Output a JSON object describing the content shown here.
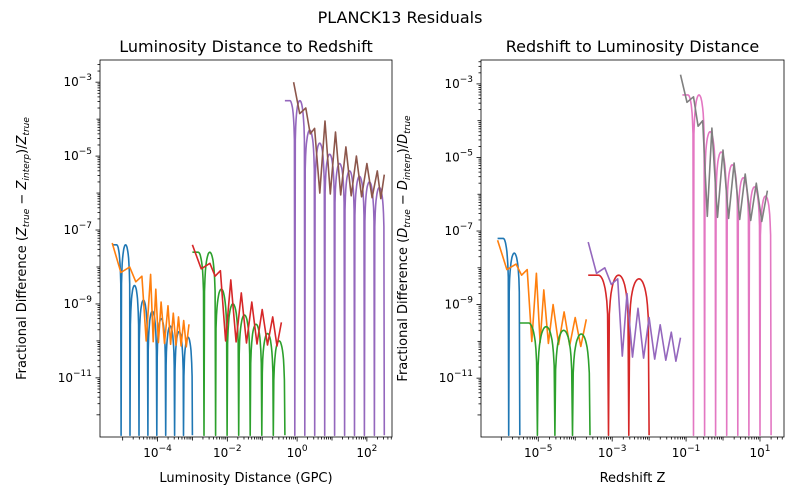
{
  "figure": {
    "suptitle": "PLANCK13 Residuals"
  },
  "palette": [
    "#1f77b4",
    "#ff7f0e",
    "#2ca02c",
    "#d62728",
    "#9467bd",
    "#8c564b",
    "#e377c2",
    "#7f7f7f"
  ],
  "chart_data": [
    {
      "type": "line",
      "title": "Luminosity Distance to Redshift",
      "xlabel": "Luminosity Distance (GPC)",
      "ylabel": "Fractional Difference (Z_true − Z_interp)/Z_true",
      "xscale": "log",
      "yscale": "log",
      "xlim_log10": [
        -5.65,
        2.72
      ],
      "ylim_log10": [
        -12.6,
        -2.4
      ],
      "xticks": [
        {
          "exp": -4,
          "label": "10^-4"
        },
        {
          "exp": -2,
          "label": "10^-2"
        },
        {
          "exp": 0,
          "label": "10^0"
        },
        {
          "exp": 2,
          "label": "10^2"
        }
      ],
      "yticks": [
        {
          "exp": -3,
          "label": "10^-3"
        },
        {
          "exp": -5,
          "label": "10^-5"
        },
        {
          "exp": -7,
          "label": "10^-7"
        },
        {
          "exp": -9,
          "label": "10^-9"
        },
        {
          "exp": -11,
          "label": "10^-11"
        }
      ],
      "series": [
        {
          "color_index": 0,
          "kind": "humps",
          "x_log10": [
            -5.3,
            -3.0
          ],
          "peaks_log10": [
            -7.4,
            -7.4,
            -8.5,
            -8.9,
            -9.2,
            -9.4,
            -9.6,
            -9.75,
            -9.9
          ],
          "floor_log10": -12.55
        },
        {
          "color_index": 1,
          "kind": "envelope",
          "x_log10": [
            -5.3,
            -3.05
          ],
          "points_log10": [
            [
              -5.3,
              -7.35
            ],
            [
              -4.8,
              -8.0
            ],
            [
              -4.45,
              -8.25
            ],
            [
              -4.2,
              -8.2
            ],
            [
              -4.05,
              -8.6
            ],
            [
              -3.9,
              -8.95
            ],
            [
              -3.7,
              -9.05
            ],
            [
              -3.55,
              -9.25
            ],
            [
              -3.4,
              -9.35
            ],
            [
              -3.25,
              -9.45
            ],
            [
              -3.1,
              -9.55
            ]
          ],
          "dips_log10": -10.0
        },
        {
          "color_index": 2,
          "kind": "humps",
          "x_log10": [
            -3.0,
            -0.35
          ],
          "peaks_log10": [
            -7.6,
            -7.6,
            -8.6,
            -9.0,
            -9.3,
            -9.55,
            -9.8,
            -10.0
          ],
          "floor_log10": -12.55
        },
        {
          "color_index": 3,
          "kind": "envelope",
          "x_log10": [
            -3.0,
            -0.4
          ],
          "points_log10": [
            [
              -3.0,
              -7.4
            ],
            [
              -2.5,
              -7.9
            ],
            [
              -2.2,
              -8.1
            ],
            [
              -1.9,
              -8.35
            ],
            [
              -1.6,
              -8.7
            ],
            [
              -1.3,
              -8.95
            ],
            [
              -1.0,
              -9.15
            ],
            [
              -0.7,
              -9.35
            ],
            [
              -0.45,
              -9.5
            ]
          ],
          "dips_log10": -10.0
        },
        {
          "color_index": 4,
          "kind": "humps",
          "x_log10": [
            -0.35,
            2.5
          ],
          "peaks_log10": [
            -3.5,
            -3.5,
            -4.3,
            -4.65,
            -4.95,
            -5.2,
            -5.4,
            -5.55,
            -5.7,
            -5.85
          ],
          "floor_log10": -12.55
        },
        {
          "color_index": 5,
          "kind": "envelope",
          "x_log10": [
            -0.1,
            2.55
          ],
          "points_log10": [
            [
              -0.1,
              -3.0
            ],
            [
              0.25,
              -3.7
            ],
            [
              0.5,
              -4.25
            ],
            [
              0.8,
              -4.05
            ],
            [
              1.1,
              -4.35
            ],
            [
              1.4,
              -4.75
            ],
            [
              1.7,
              -5.0
            ],
            [
              2.0,
              -5.2
            ],
            [
              2.3,
              -5.4
            ],
            [
              2.5,
              -5.5
            ]
          ],
          "dips_log10": -6.0
        }
      ]
    },
    {
      "type": "line",
      "title": "Redshift to Luminosity Distance",
      "xlabel": "Redshift Z",
      "ylabel": "Fractional Difference (D_true − D_interp)/D_true",
      "xscale": "log",
      "yscale": "log",
      "xlim_log10": [
        -6.55,
        1.65
      ],
      "ylim_log10": [
        -12.6,
        -2.35
      ],
      "xticks": [
        {
          "exp": -5,
          "label": "10^-5"
        },
        {
          "exp": -3,
          "label": "10^-3"
        },
        {
          "exp": -1,
          "label": "10^-1"
        },
        {
          "exp": 1,
          "label": "10^1"
        }
      ],
      "yticks": [
        {
          "exp": -3,
          "label": "10^-3"
        },
        {
          "exp": -5,
          "label": "10^-5"
        },
        {
          "exp": -7,
          "label": "10^-7"
        },
        {
          "exp": -9,
          "label": "10^-9"
        },
        {
          "exp": -11,
          "label": "10^-11"
        }
      ],
      "series": [
        {
          "color_index": 0,
          "kind": "humps",
          "x_log10": [
            -6.1,
            -5.5
          ],
          "peaks_log10": [
            -7.2,
            -7.6
          ],
          "floor_log10": -12.55
        },
        {
          "color_index": 1,
          "kind": "envelope",
          "x_log10": [
            -6.1,
            -3.6
          ],
          "points_log10": [
            [
              -6.1,
              -7.25
            ],
            [
              -5.6,
              -7.9
            ],
            [
              -5.3,
              -8.05
            ],
            [
              -5.05,
              -8.15
            ],
            [
              -4.85,
              -8.6
            ],
            [
              -4.6,
              -9.0
            ],
            [
              -4.3,
              -9.2
            ],
            [
              -4.0,
              -9.35
            ],
            [
              -3.7,
              -9.4
            ]
          ],
          "dips_log10": -10.0
        },
        {
          "color_index": 2,
          "kind": "humps",
          "x_log10": [
            -5.5,
            -3.6
          ],
          "peaks_log10": [
            -9.5,
            -9.6,
            -9.7,
            -9.8
          ],
          "floor_log10": -12.55
        },
        {
          "color_index": 3,
          "kind": "humps",
          "x_log10": [
            -3.65,
            -2.0
          ],
          "peaks_log10": [
            -8.2,
            -8.2,
            -8.3
          ],
          "floor_log10": -12.55
        },
        {
          "color_index": 4,
          "kind": "envelope",
          "x_log10": [
            -3.65,
            -1.1
          ],
          "points_log10": [
            [
              -3.65,
              -7.3
            ],
            [
              -3.2,
              -8.0
            ],
            [
              -2.85,
              -8.3
            ],
            [
              -2.6,
              -8.7
            ],
            [
              -2.3,
              -9.1
            ],
            [
              -2.0,
              -9.35
            ],
            [
              -1.7,
              -9.55
            ],
            [
              -1.4,
              -9.75
            ],
            [
              -1.15,
              -9.9
            ]
          ],
          "dips_log10": -10.4
        },
        {
          "color_index": 6,
          "kind": "humps",
          "x_log10": [
            -1.1,
            1.3
          ],
          "peaks_log10": [
            -3.3,
            -3.3,
            -4.3,
            -4.85,
            -5.2,
            -5.55,
            -5.8,
            -6.05
          ],
          "floor_log10": -12.55
        },
        {
          "color_index": 7,
          "kind": "envelope",
          "x_log10": [
            -1.15,
            1.3
          ],
          "points_log10": [
            [
              -1.15,
              -2.75
            ],
            [
              -0.8,
              -3.35
            ],
            [
              -0.55,
              -4.0
            ],
            [
              -0.3,
              -4.2
            ],
            [
              0.0,
              -4.8
            ],
            [
              0.3,
              -5.15
            ],
            [
              0.6,
              -5.45
            ],
            [
              0.9,
              -5.7
            ],
            [
              1.2,
              -5.9
            ]
          ],
          "dips_log10": -6.6
        }
      ]
    }
  ]
}
